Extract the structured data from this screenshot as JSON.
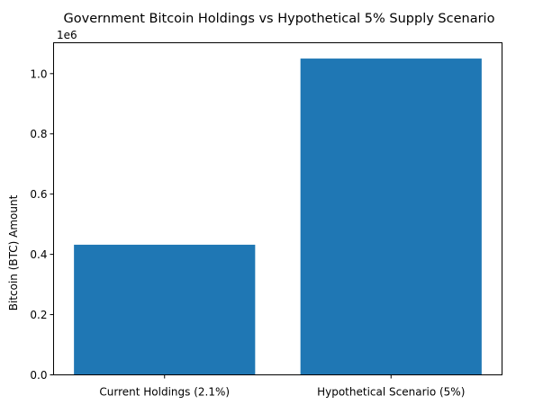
{
  "chart_data": {
    "type": "bar",
    "title": "Government Bitcoin Holdings vs Hypothetical 5% Supply Scenario",
    "xlabel": "",
    "ylabel": "Bitcoin (BTC) Amount",
    "y_offset_label": "1e6",
    "categories": [
      "Current Holdings (2.1%)",
      "Hypothetical Scenario (5%)"
    ],
    "values": [
      432000,
      1050000
    ],
    "ylim": [
      0,
      1102500
    ],
    "y_ticks": [
      0,
      200000,
      400000,
      600000,
      800000,
      1000000
    ],
    "y_tick_labels": [
      "0.0",
      "0.2",
      "0.4",
      "0.6",
      "0.8",
      "1.0"
    ],
    "bar_color": "#1f77b4",
    "grid": false,
    "legend": "none"
  }
}
